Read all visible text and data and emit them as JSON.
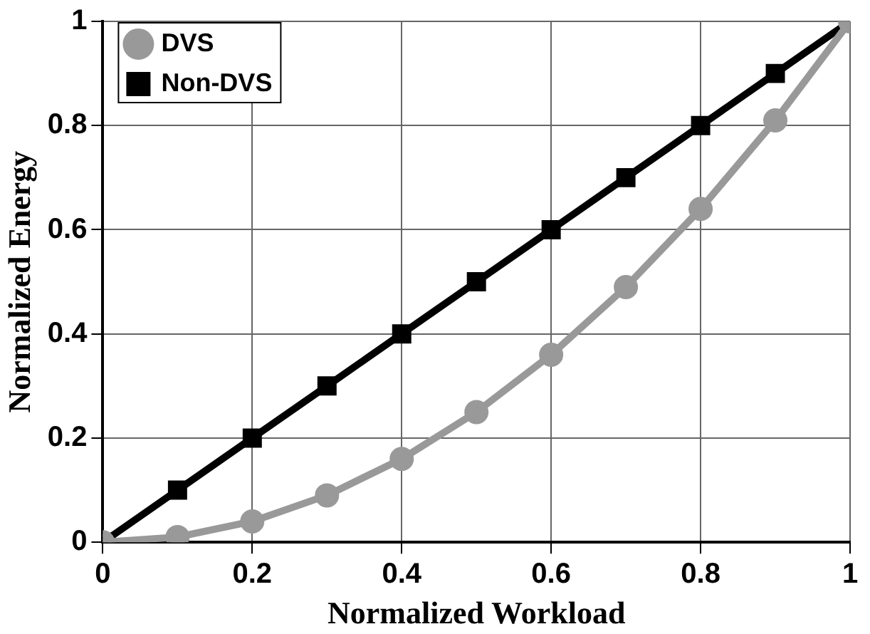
{
  "chart_data": {
    "type": "line",
    "xlabel": "Normalized Workload",
    "ylabel": "Normalized Energy",
    "x": [
      0,
      0.1,
      0.2,
      0.3,
      0.4,
      0.5,
      0.6,
      0.7,
      0.8,
      0.9,
      1
    ],
    "series": [
      {
        "name": "DVS",
        "color": "#999999",
        "marker": "circle",
        "values": [
          0,
          0.01,
          0.04,
          0.09,
          0.16,
          0.25,
          0.36,
          0.49,
          0.64,
          0.81,
          1
        ]
      },
      {
        "name": "Non-DVS",
        "color": "#000000",
        "marker": "square",
        "values": [
          0,
          0.1,
          0.2,
          0.3,
          0.4,
          0.5,
          0.6,
          0.7,
          0.8,
          0.9,
          1
        ]
      }
    ],
    "xlim": [
      0,
      1
    ],
    "ylim": [
      0,
      1
    ],
    "xticks": [
      0,
      0.2,
      0.4,
      0.6,
      0.8,
      1
    ],
    "yticks": [
      0,
      0.2,
      0.4,
      0.6,
      0.8,
      1
    ],
    "grid": true,
    "legend": "top left",
    "line_style": "solid"
  }
}
